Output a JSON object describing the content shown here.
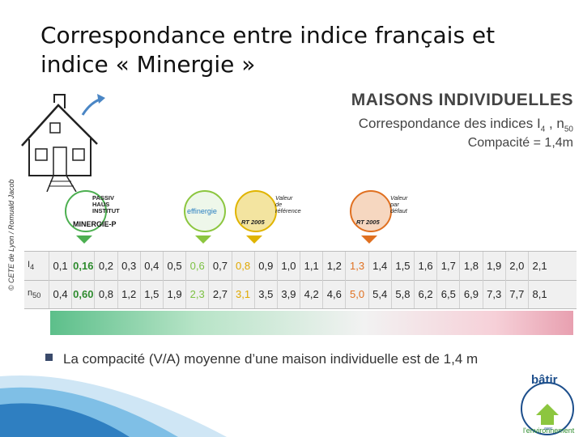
{
  "title_line1": "Correspondance entre indice français et",
  "title_line2": "indice « Minergie »",
  "heading": "MAISONS INDIVIDUELLES",
  "subheading": "Correspondance des indices I",
  "subheading_sub1": "4",
  "subheading_mid": " , n",
  "subheading_sub2": "50",
  "compacity": "Compacité = 1,4m",
  "credit": "© CETE de Lyon / Romuald Jacob",
  "badges": {
    "minergie": {
      "lines": [
        "PASSIV",
        "HAUS",
        "INSTITUT"
      ],
      "brand": "MINERGIE-P"
    },
    "effinergie": {
      "brand": "effinergie"
    },
    "rt_ref": {
      "lines": [
        "Valeur",
        "de",
        "référence"
      ],
      "brand": "RT 2005"
    },
    "rt_def": {
      "lines": [
        "Valeur",
        "par",
        "défaut"
      ],
      "brand": "RT 2005"
    }
  },
  "table": {
    "row1_label": "I",
    "row1_sub": "4",
    "row2_label": "n",
    "row2_sub": "50",
    "i4": [
      "0,1",
      "0,16",
      "0,2",
      "0,3",
      "0,4",
      "0,5",
      "0,6",
      "0,7",
      "0,8",
      "0,9",
      "1,0",
      "1,1",
      "1,2",
      "1,3",
      "1,4",
      "1,5",
      "1,6",
      "1,7",
      "1,8",
      "1,9",
      "2,0",
      "2,1"
    ],
    "n50": [
      "0,4",
      "0,60",
      "0,8",
      "1,2",
      "1,5",
      "1,9",
      "2,3",
      "2,7",
      "3,1",
      "3,5",
      "3,9",
      "4,2",
      "4,6",
      "5,0",
      "5,4",
      "5,8",
      "6,2",
      "6,5",
      "6,9",
      "7,3",
      "7,7",
      "8,1"
    ]
  },
  "bullet": "La compacité (V/A) moyenne d’une maison individuelle est de 1,4 m",
  "logo": {
    "top": "bâtir",
    "curve": "l'environnement",
    "small": "avec"
  },
  "colors": {
    "green": "#2e8b2e",
    "light_green": "#7cc143",
    "yellow": "#e0a800",
    "orange": "#e07020",
    "blue": "#1d4f8c"
  }
}
